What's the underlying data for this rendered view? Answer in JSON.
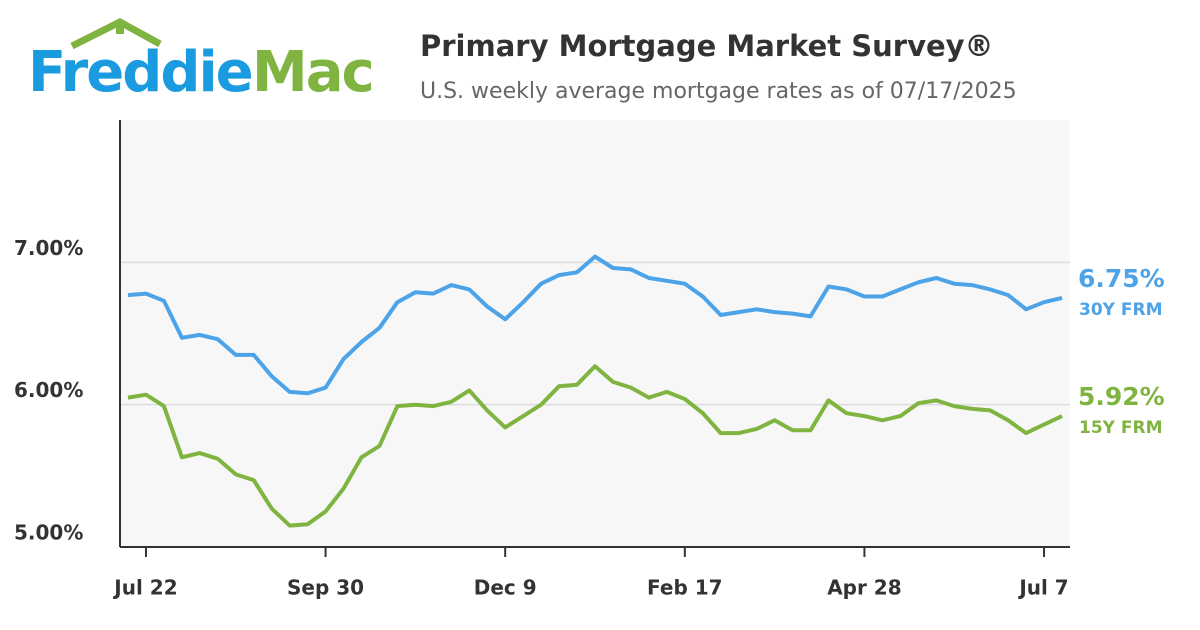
{
  "logo": {
    "part1": "Freddie",
    "part2": "Mac"
  },
  "chart_data": {
    "type": "line",
    "title": "Primary Mortgage Market Survey®",
    "subtitle": "U.S. weekly average mortgage rates as of 07/17/2025",
    "categories": [
      null,
      "Jul 22",
      null,
      null,
      null,
      null,
      null,
      null,
      null,
      null,
      null,
      "Sep 30",
      null,
      null,
      null,
      null,
      null,
      null,
      null,
      null,
      null,
      "Dec 9",
      null,
      null,
      null,
      null,
      null,
      null,
      null,
      null,
      null,
      "Feb 17",
      null,
      null,
      null,
      null,
      null,
      null,
      null,
      null,
      null,
      "Apr 28",
      null,
      null,
      null,
      null,
      null,
      null,
      null,
      null,
      null,
      "Jul 7",
      null
    ],
    "ylim": [
      5,
      8
    ],
    "yticks": [
      {
        "value": 5,
        "label": "5.00%"
      },
      {
        "value": 6,
        "label": "6.00%"
      },
      {
        "value": 7,
        "label": "7.00%"
      }
    ],
    "grid": true,
    "series": [
      {
        "name": "30Y FRM",
        "color": "#4da3e8",
        "values": [
          6.77,
          6.78,
          6.73,
          6.47,
          6.49,
          6.46,
          6.35,
          6.35,
          6.2,
          6.09,
          6.08,
          6.12,
          6.32,
          6.44,
          6.54,
          6.72,
          6.79,
          6.78,
          6.84,
          6.81,
          6.69,
          6.6,
          6.72,
          6.85,
          6.91,
          6.93,
          7.04,
          6.96,
          6.95,
          6.89,
          6.87,
          6.85,
          6.76,
          6.63,
          6.65,
          6.67,
          6.65,
          6.64,
          6.62,
          6.83,
          6.81,
          6.76,
          6.76,
          6.81,
          6.86,
          6.89,
          6.85,
          6.84,
          6.81,
          6.77,
          6.67,
          6.72,
          6.75
        ],
        "value_labels": [
          null,
          null,
          null,
          null,
          null,
          null,
          null,
          null,
          null,
          null,
          null,
          null,
          null,
          null,
          null,
          null,
          null,
          null,
          null,
          null,
          null,
          null,
          null,
          null,
          null,
          null,
          null,
          null,
          null,
          null,
          null,
          null,
          null,
          null,
          null,
          null,
          null,
          null,
          null,
          null,
          null,
          null,
          null,
          null,
          null,
          null,
          null,
          null,
          null,
          null,
          null,
          null,
          "6.75%"
        ]
      },
      {
        "name": "15Y FRM",
        "color": "#80b441",
        "values": [
          6.05,
          6.07,
          5.99,
          5.63,
          5.66,
          5.62,
          5.51,
          5.47,
          5.27,
          5.15,
          5.16,
          5.25,
          5.41,
          5.63,
          5.71,
          5.99,
          6.0,
          5.99,
          6.02,
          6.1,
          5.96,
          5.84,
          5.92,
          6.0,
          6.13,
          6.14,
          6.27,
          6.16,
          6.12,
          6.05,
          6.09,
          6.04,
          5.94,
          5.8,
          5.8,
          5.83,
          5.89,
          5.82,
          5.82,
          6.03,
          5.94,
          5.92,
          5.89,
          5.92,
          6.01,
          6.03,
          5.99,
          5.97,
          5.96,
          5.89,
          5.8,
          5.86,
          5.92
        ],
        "value_labels": [
          null,
          null,
          null,
          null,
          null,
          null,
          null,
          null,
          null,
          null,
          null,
          null,
          null,
          null,
          null,
          null,
          null,
          null,
          null,
          null,
          null,
          null,
          null,
          null,
          null,
          null,
          null,
          null,
          null,
          null,
          null,
          null,
          null,
          null,
          null,
          null,
          null,
          null,
          null,
          null,
          null,
          null,
          null,
          null,
          null,
          null,
          null,
          null,
          null,
          null,
          null,
          null,
          "5.92%"
        ]
      }
    ]
  }
}
